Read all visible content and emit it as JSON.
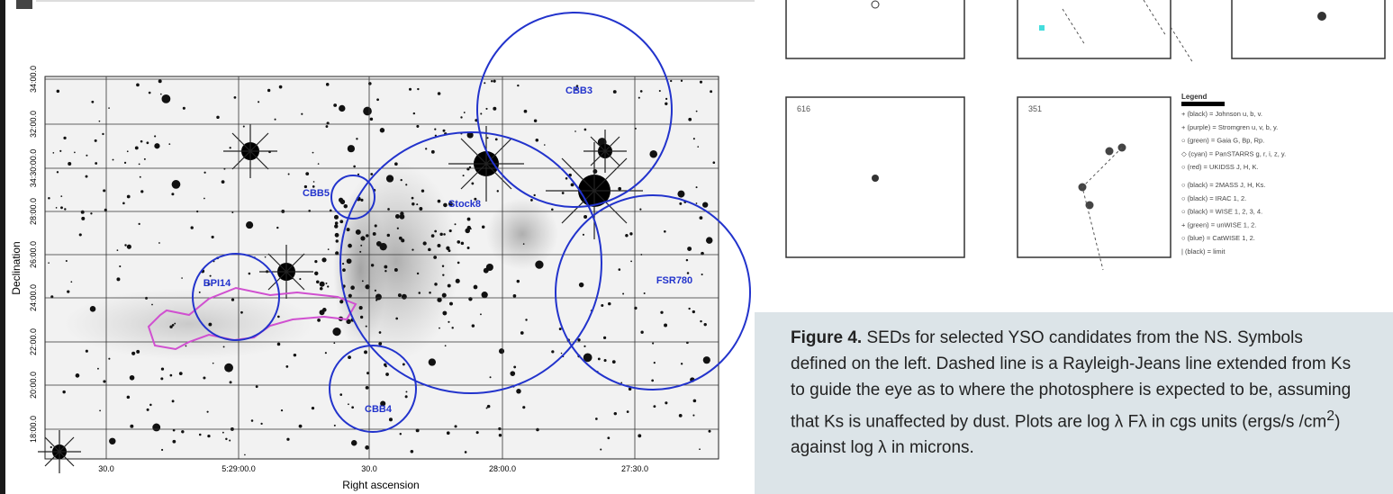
{
  "sky_image": {
    "dec_ticks": [
      "34:00.0",
      "32:00.0",
      "34:30:00.0",
      "28:00.0",
      "26:00.0",
      "24:00.0",
      "22:00.0",
      "20:00.0",
      "18:00.0"
    ],
    "ra_ticks": [
      "30.0",
      "5:29:00.0",
      "30.0",
      "28:00.0",
      "27:30.0"
    ],
    "y_label": "Declination",
    "x_label": "Right ascension",
    "regions": [
      "CBB3",
      "CBB5",
      "Stock8",
      "BPI14",
      "FSR780",
      "CBB4"
    ]
  },
  "sed_panels": {
    "labels": [
      "616",
      "351"
    ]
  },
  "legend": {
    "title": "Legend",
    "entries": [
      "+ (black) = Johnson u, b, v.",
      "+ (purple) = Stromgren u, v, b, y.",
      "○ (green) = Gaia G, Bp, Rp.",
      "◇ (cyan) = PanSTARRS g, r, i, z, y.",
      "○ (red) = UKIDSS J, H, K.",
      "○ (black) = 2MASS J, H, Ks.",
      "○ (black) = IRAC 1, 2.",
      "○ (black) = WISE 1, 2, 3, 4.",
      "+ (green) = unWISE 1, 2.",
      "○ (blue) = CatWISE 1, 2.",
      "| (black) = limit"
    ]
  },
  "caption": {
    "label": "Figure 4.",
    "text": "SEDs for selected YSO candidates from the NS. Symbols defined on the left. Dashed line is a Rayleigh-Jeans line extended from Ks to guide the eye as to where the photosphere is expected to be, assuming that Ks is unaffected by dust. Plots are log λ Fλ in cgs units (ergs/s /cm",
    "sup": "2",
    "tail": ") against log λ in microns."
  }
}
